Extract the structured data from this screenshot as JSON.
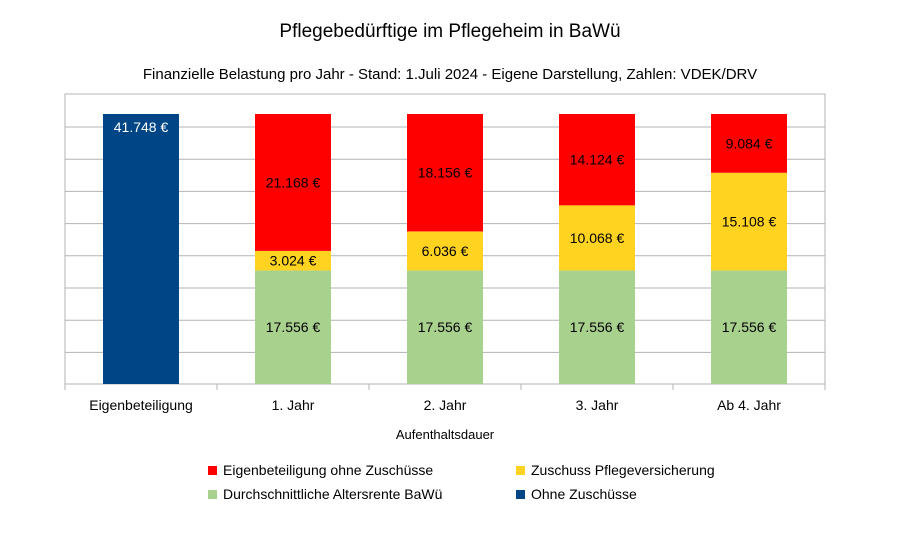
{
  "title": "Pflegebedürftige im Pflegeheim in BaWü",
  "subtitle": "Finanzielle Belastung pro Jahr - Stand: 1.Juli 2024 - Eigene Darstellung, Zahlen: VDEK/DRV",
  "chart_data": {
    "type": "bar",
    "stacked": true,
    "title": "Pflegebedürftige im Pflegeheim in BaWü",
    "subtitle": "Finanzielle Belastung pro Jahr - Stand: 1.Juli 2024 - Eigene Darstellung, Zahlen: VDEK/DRV",
    "xlabel": "Aufenthaltsdauer",
    "ylabel": "",
    "ylim": [
      0,
      41748
    ],
    "grid": true,
    "legend_position": "bottom",
    "categories": [
      "Eigenbeteiligung",
      "1. Jahr",
      "2. Jahr",
      "3. Jahr",
      "Ab 4. Jahr"
    ],
    "series": [
      {
        "name": "Durchschnittliche Altersrente BaWü",
        "color": "#a9d18e",
        "values": [
          0,
          17556,
          17556,
          17556,
          17556
        ],
        "labels": [
          "",
          "17.556 €",
          "17.556 €",
          "17.556 €",
          "17.556 €"
        ]
      },
      {
        "name": "Zuschuss Pflegeversicherung",
        "color": "#ffd320",
        "values": [
          0,
          3024,
          6036,
          10068,
          15108
        ],
        "labels": [
          "",
          "3.024 €",
          "6.036 €",
          "10.068 €",
          "15.108 €"
        ]
      },
      {
        "name": "Eigenbeteiligung ohne Zuschüsse",
        "color": "#ff0000",
        "values": [
          0,
          21168,
          18156,
          14124,
          9084
        ],
        "labels": [
          "",
          "21.168 €",
          "18.156 €",
          "14.124 €",
          "9.084 €"
        ]
      },
      {
        "name": "Ohne Zuschüsse",
        "color": "#004586",
        "values": [
          41748,
          0,
          0,
          0,
          0
        ],
        "labels": [
          "41.748 €",
          "",
          "",
          "",
          ""
        ]
      }
    ],
    "legend_order": [
      "Eigenbeteiligung ohne Zuschüsse",
      "Zuschuss Pflegeversicherung",
      "Durchschnittliche Altersrente BaWü",
      "Ohne Zuschüsse"
    ]
  }
}
